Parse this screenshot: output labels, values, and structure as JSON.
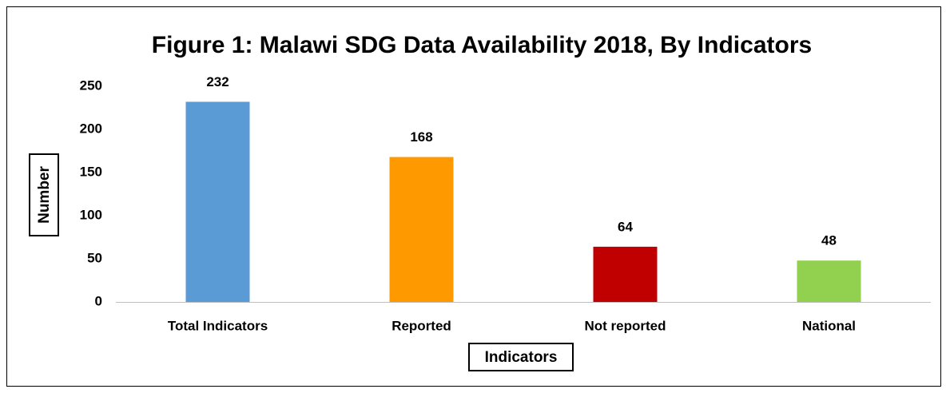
{
  "chart_data": {
    "type": "bar",
    "title": "Figure 1: Malawi SDG Data Availability 2018, By Indicators",
    "x_label": "Indicators",
    "y_label": "Number",
    "categories": [
      "Total Indicators",
      "Reported",
      "Not reported",
      "National"
    ],
    "values": [
      232,
      168,
      64,
      48
    ],
    "colors": [
      "#5b9bd5",
      "#ff9900",
      "#c00000",
      "#92d050"
    ],
    "ylim": [
      0,
      250
    ],
    "yticks": [
      0,
      50,
      100,
      150,
      200,
      250
    ],
    "grid": false
  }
}
